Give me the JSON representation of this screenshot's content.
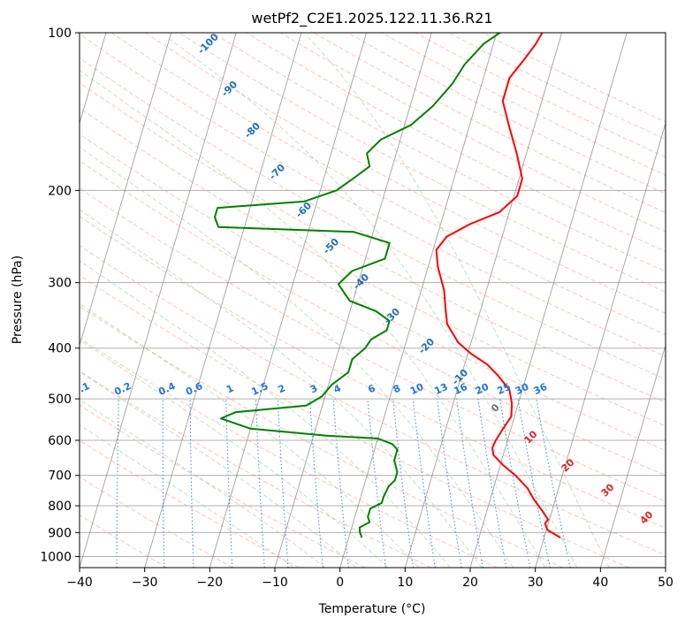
{
  "chart_data": {
    "type": "line",
    "title": "wetPf2_C2E1.2025.122.11.36.R21",
    "xlabel": "Temperature (°C)",
    "ylabel": "Pressure (hPa)",
    "xlim": [
      -40,
      50
    ],
    "ylim": [
      1050,
      100
    ],
    "y_scale": "log",
    "x_ticks": [
      "−40",
      "−30",
      "−20",
      "−10",
      "0",
      "10",
      "20",
      "30",
      "40",
      "50"
    ],
    "y_ticks": [
      "100",
      "200",
      "300",
      "400",
      "500",
      "600",
      "700",
      "800",
      "900",
      "1000"
    ],
    "y_tick_values": [
      100,
      200,
      300,
      400,
      500,
      600,
      700,
      800,
      900,
      1000
    ],
    "grid": true,
    "colors": {
      "temperature": "#ff0000",
      "dewpoint": "#008000",
      "isotherm": "#808080",
      "dry_adiabat": "#ff8c69",
      "moist_adiabat": "#4caf50",
      "mixing_ratio": "#1f77d4",
      "label_blue": "#1f6fb4",
      "label_red": "#d62728",
      "label_grey": "#707070"
    },
    "series": [
      {
        "name": "",
        "role": "temperature",
        "points": [
          [
            32.5,
            920
          ],
          [
            30.2,
            890
          ],
          [
            29.5,
            865
          ],
          [
            29.8,
            850
          ],
          [
            28.6,
            820
          ],
          [
            26.8,
            780
          ],
          [
            25.2,
            740
          ],
          [
            22.8,
            700
          ],
          [
            20.5,
            670
          ],
          [
            18.5,
            640
          ],
          [
            18.0,
            620
          ],
          [
            18.2,
            600
          ],
          [
            18.8,
            570
          ],
          [
            19.5,
            540
          ],
          [
            19.0,
            510
          ],
          [
            18.0,
            480
          ],
          [
            15.5,
            450
          ],
          [
            13.5,
            430
          ],
          [
            10.5,
            410
          ],
          [
            8.0,
            390
          ],
          [
            5.5,
            360
          ],
          [
            4.5,
            335
          ],
          [
            3.5,
            310
          ],
          [
            1.5,
            280
          ],
          [
            0.5,
            260
          ],
          [
            1.5,
            245
          ],
          [
            4.5,
            232
          ],
          [
            8.5,
            220
          ],
          [
            10.5,
            205
          ],
          [
            10.5,
            190
          ],
          [
            8.5,
            170
          ],
          [
            6.0,
            150
          ],
          [
            4.0,
            135
          ],
          [
            4.0,
            122
          ],
          [
            5.5,
            112
          ],
          [
            6.5,
            105
          ],
          [
            7.0,
            100
          ]
        ]
      },
      {
        "name": "",
        "role": "dewpoint",
        "points": [
          [
            2.0,
            920
          ],
          [
            1.5,
            900
          ],
          [
            1.2,
            880
          ],
          [
            2.5,
            860
          ],
          [
            2.0,
            840
          ],
          [
            2.0,
            810
          ],
          [
            3.5,
            790
          ],
          [
            3.5,
            770
          ],
          [
            3.8,
            735
          ],
          [
            4.5,
            715
          ],
          [
            4.5,
            690
          ],
          [
            3.5,
            655
          ],
          [
            3.5,
            625
          ],
          [
            2.5,
            610
          ],
          [
            0.0,
            595
          ],
          [
            -8.0,
            588
          ],
          [
            -20.0,
            570
          ],
          [
            -25.0,
            545
          ],
          [
            -23.0,
            530
          ],
          [
            -12.5,
            515
          ],
          [
            -10.5,
            495
          ],
          [
            -9.5,
            470
          ],
          [
            -7.5,
            445
          ],
          [
            -7.5,
            420
          ],
          [
            -6.0,
            400
          ],
          [
            -5.5,
            385
          ],
          [
            -3.5,
            370
          ],
          [
            -3.5,
            355
          ],
          [
            -6.0,
            340
          ],
          [
            -10.5,
            325
          ],
          [
            -13.0,
            302
          ],
          [
            -11.5,
            285
          ],
          [
            -7.0,
            270
          ],
          [
            -7.0,
            252
          ],
          [
            -13.0,
            240
          ],
          [
            -34.0,
            235
          ],
          [
            -35.0,
            225
          ],
          [
            -35.0,
            216
          ],
          [
            -22.0,
            210
          ],
          [
            -17.5,
            200
          ],
          [
            -15.5,
            190
          ],
          [
            -13.5,
            180
          ],
          [
            -14.5,
            170
          ],
          [
            -13.0,
            160
          ],
          [
            -9.0,
            150
          ],
          [
            -6.5,
            138
          ],
          [
            -4.5,
            125
          ],
          [
            -3.5,
            115
          ],
          [
            -1.5,
            105
          ],
          [
            0.5,
            100
          ]
        ]
      }
    ],
    "annotations": {
      "dry_adiabat_labels": [
        "-100",
        "-90",
        "-80",
        "-70",
        "-60",
        "-50",
        "-40",
        "-30",
        "-20",
        "-10",
        "0"
      ],
      "moist_adiabat_labels": [
        "10",
        "20",
        "30",
        "40"
      ],
      "mixing_ratio_labels": [
        "0.1",
        "0.2",
        "0.4",
        "0.6",
        "1",
        "1.5",
        "2",
        "3",
        "4",
        "6",
        "8",
        "10",
        "13",
        "16",
        "20",
        "25",
        "30",
        "36"
      ]
    }
  }
}
